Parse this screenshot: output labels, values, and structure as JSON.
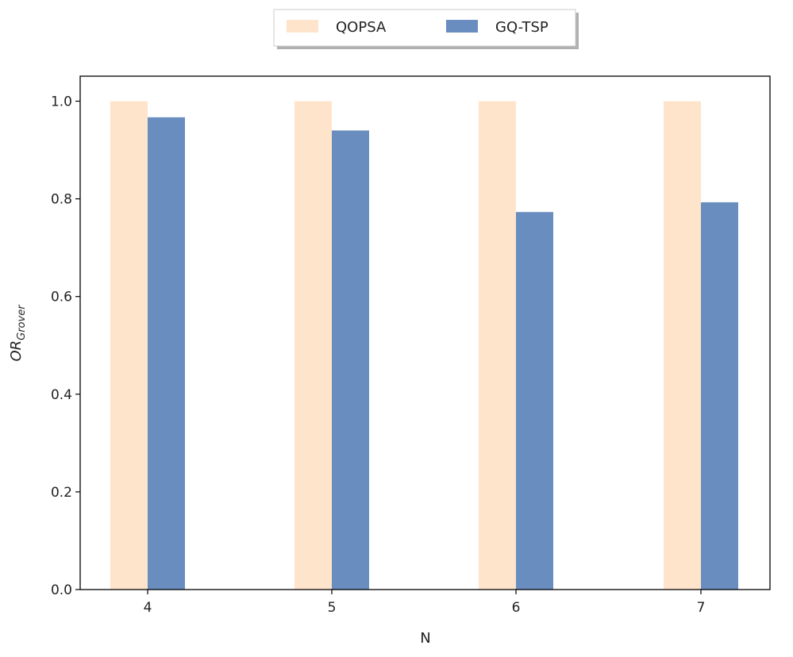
{
  "chart_data": {
    "type": "bar",
    "xlabel": "N",
    "ylabel": "OR",
    "ylabel_subscript": "Grover",
    "categories": [
      "4",
      "5",
      "6",
      "7"
    ],
    "series": [
      {
        "name": "QOPSA",
        "values": [
          1.0,
          1.0,
          1.0,
          1.0
        ],
        "color": "#FFE4CC"
      },
      {
        "name": "GQ-TSP",
        "values": [
          0.967,
          0.94,
          0.773,
          0.793
        ],
        "color": "#6A8DBF"
      }
    ],
    "ylim": [
      0,
      1.05
    ],
    "yticks": [
      0.0,
      0.2,
      0.4,
      0.6,
      0.8,
      1.0
    ],
    "ytick_labels": [
      "0.0",
      "0.2",
      "0.4",
      "0.6",
      "0.8",
      "1.0"
    ],
    "legend_position": "top-center",
    "grid": false
  }
}
